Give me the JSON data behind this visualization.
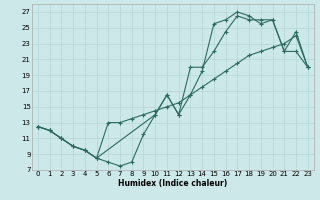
{
  "xlabel": "Humidex (Indice chaleur)",
  "bg_color": "#cce8e8",
  "grid_color": "#b8d8d8",
  "line_color": "#2a6b60",
  "xlim": [
    -0.5,
    23.5
  ],
  "ylim": [
    7,
    28
  ],
  "xticks": [
    0,
    1,
    2,
    3,
    4,
    5,
    6,
    7,
    8,
    9,
    10,
    11,
    12,
    13,
    14,
    15,
    16,
    17,
    18,
    19,
    20,
    21,
    22,
    23
  ],
  "yticks": [
    7,
    9,
    11,
    13,
    15,
    17,
    19,
    21,
    23,
    25,
    27
  ],
  "curve1_x": [
    0,
    1,
    2,
    3,
    4,
    5,
    6,
    7,
    8,
    9,
    10,
    11,
    12,
    13,
    14,
    15,
    16,
    17,
    18,
    19,
    20,
    21,
    22,
    23
  ],
  "curve1_y": [
    12.5,
    12.0,
    11.0,
    10.0,
    9.5,
    8.5,
    8.0,
    7.5,
    8.0,
    11.5,
    14.0,
    16.5,
    14.0,
    16.5,
    19.5,
    25.5,
    26.0,
    27.0,
    26.5,
    25.5,
    26.0,
    22.0,
    24.5,
    20.0
  ],
  "curve2_x": [
    0,
    1,
    2,
    3,
    4,
    5,
    6,
    7,
    8,
    9,
    10,
    11,
    12,
    13,
    14,
    15,
    16,
    17,
    18,
    19,
    20,
    21,
    22,
    23
  ],
  "curve2_y": [
    12.5,
    12.0,
    11.0,
    10.0,
    9.5,
    8.5,
    13.0,
    13.0,
    13.5,
    14.0,
    14.5,
    15.0,
    15.5,
    16.5,
    17.5,
    18.5,
    19.5,
    20.5,
    21.5,
    22.0,
    22.5,
    23.0,
    24.0,
    20.0
  ],
  "curve3_x": [
    0,
    1,
    2,
    3,
    4,
    5,
    10,
    11,
    12,
    13,
    14,
    15,
    16,
    17,
    18,
    19,
    20,
    21,
    22,
    23
  ],
  "curve3_y": [
    12.5,
    12.0,
    11.0,
    10.0,
    9.5,
    8.5,
    14.0,
    16.5,
    14.0,
    20.0,
    20.0,
    22.0,
    24.5,
    26.5,
    26.0,
    26.0,
    26.0,
    22.0,
    22.0,
    20.0
  ]
}
